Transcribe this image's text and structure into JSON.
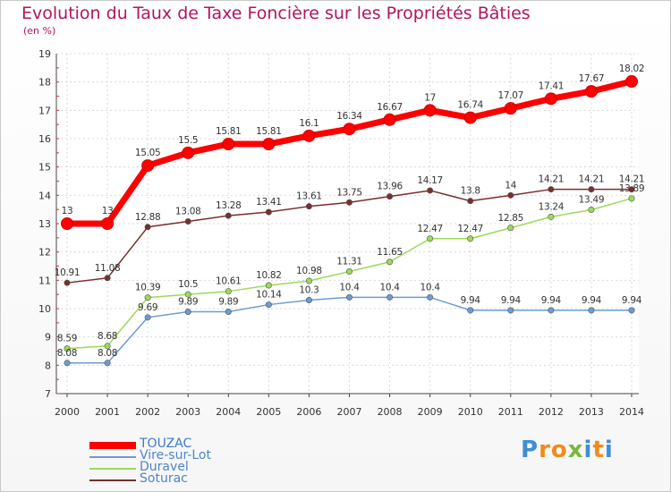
{
  "header": {
    "title": "Evolution du Taux de Taxe Foncière sur les Propriétés Bâties",
    "subtitle": "(en %)"
  },
  "logo": {
    "text": "Proxiti",
    "letters": [
      "P",
      "r",
      "o",
      "x",
      "i",
      "t",
      "i"
    ],
    "colors": [
      "#3d8fd6",
      "#f08a1c",
      "#f08a1c",
      "#7ab83c",
      "#3d8fd6",
      "#f08a1c",
      "#3d8fd6"
    ]
  },
  "chart_data": {
    "type": "line",
    "title": "Evolution du Taux de Taxe Foncière sur les Propriétés Bâties",
    "ylabel": "(en %)",
    "xlabel": "",
    "ylim": [
      7,
      19
    ],
    "yticks": [
      7,
      8,
      9,
      10,
      11,
      12,
      13,
      14,
      15,
      16,
      17,
      18,
      19
    ],
    "x": [
      "2000",
      "2001",
      "2002",
      "2003",
      "2004",
      "2005",
      "2006",
      "2007",
      "2008",
      "2009",
      "2010",
      "2011",
      "2012",
      "2013",
      "2014"
    ],
    "grid": true,
    "legend": "bottom-left",
    "series": [
      {
        "name": "TOUZAC",
        "color": "#ff0000",
        "labelColor": "#ff0000",
        "values": [
          13,
          13,
          15.05,
          15.5,
          15.81,
          15.81,
          16.1,
          16.34,
          16.67,
          17,
          16.74,
          17.07,
          17.41,
          17.67,
          18.02
        ]
      },
      {
        "name": "Vire-sur-Lot",
        "color": "#6a9cd2",
        "labelColor": "#4f86c6",
        "values": [
          8.08,
          8.08,
          9.69,
          9.89,
          9.89,
          10.14,
          10.3,
          10.4,
          10.4,
          10.4,
          9.94,
          9.94,
          9.94,
          9.94,
          9.94
        ]
      },
      {
        "name": "Duravel",
        "color": "#9cd95a",
        "labelColor": "#7cbf3a",
        "values": [
          8.59,
          8.68,
          10.39,
          10.5,
          10.61,
          10.82,
          10.98,
          11.31,
          11.65,
          12.47,
          12.47,
          12.85,
          13.24,
          13.49,
          13.89
        ]
      },
      {
        "name": "Soturac",
        "color": "#7a2e2e",
        "labelColor": "#7a2e2e",
        "values": [
          10.91,
          11.08,
          12.88,
          13.08,
          13.28,
          13.41,
          13.61,
          13.75,
          13.96,
          14.17,
          13.8,
          14,
          14.21,
          14.21,
          14.21
        ]
      }
    ]
  }
}
